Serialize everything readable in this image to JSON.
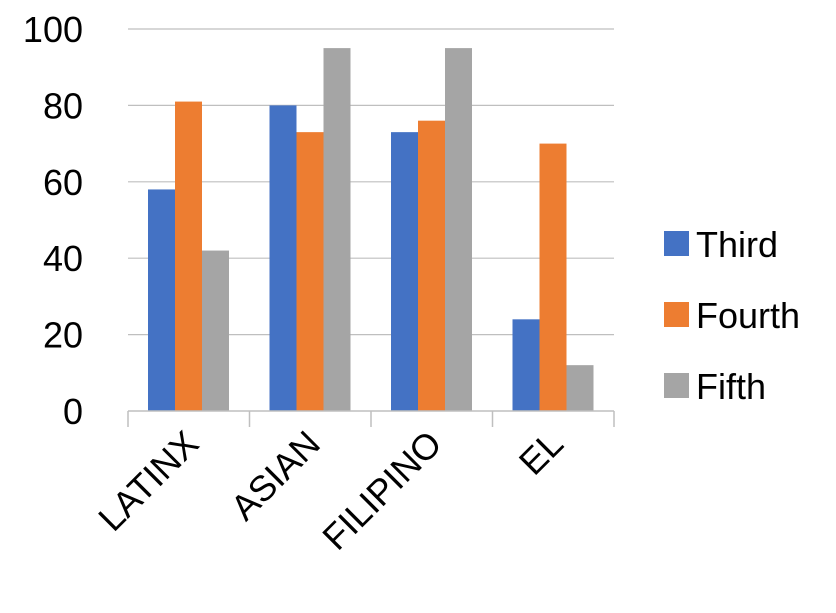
{
  "chart_data": {
    "type": "bar",
    "categories": [
      "LATINX",
      "ASIAN",
      "FILIPINO",
      "EL"
    ],
    "series": [
      {
        "name": "Third",
        "color": "#4472C4",
        "values": [
          58,
          80,
          73,
          24
        ]
      },
      {
        "name": "Fourth",
        "color": "#ED7D31",
        "values": [
          81,
          73,
          76,
          70
        ]
      },
      {
        "name": "Fifth",
        "color": "#A5A5A5",
        "values": [
          42,
          95,
          95,
          12
        ]
      }
    ],
    "yticks": [
      0,
      20,
      40,
      60,
      80,
      100
    ],
    "ylim": [
      0,
      100
    ],
    "grid": true,
    "legend_position": "right"
  }
}
